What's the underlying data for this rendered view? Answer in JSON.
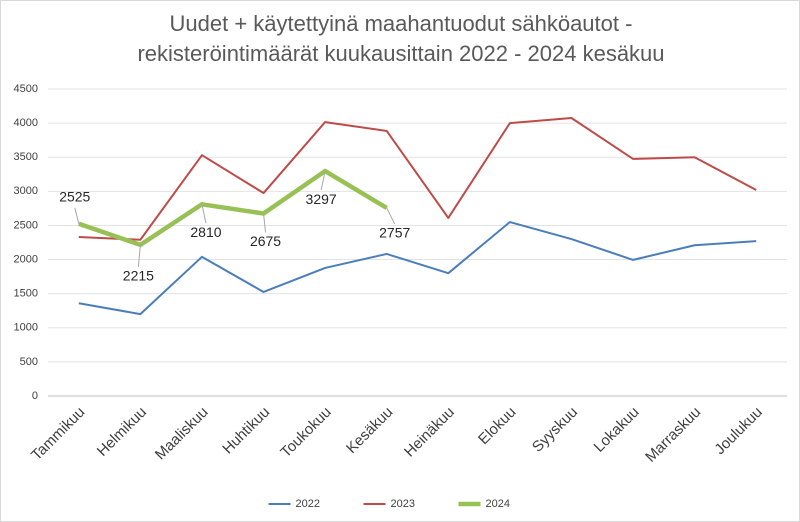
{
  "chart_data": {
    "type": "line",
    "title": [
      "Uudet + käytettyinä maahantuodut sähköautot -",
      "rekisteröintimäärät kuukausittain 2022 - 2024 kesäkuu"
    ],
    "categories": [
      "Tammikuu",
      "Helmikuu",
      "Maaliskuu",
      "Huhtikuu",
      "Toukokuu",
      "Kesäkuu",
      "Heinäkuu",
      "Elokuu",
      "Syyskuu",
      "Lokakuu",
      "Marraskuu",
      "Joulukuu"
    ],
    "series": [
      {
        "name": "2022",
        "color": "#4a7ebb",
        "width": 2,
        "values": [
          1360,
          1200,
          2040,
          1525,
          1877,
          2082,
          1800,
          2550,
          2300,
          1995,
          2210,
          2270
        ]
      },
      {
        "name": "2023",
        "color": "#be4b48",
        "width": 2,
        "values": [
          2330,
          2290,
          3530,
          2975,
          4015,
          3885,
          2610,
          4000,
          4075,
          3475,
          3500,
          3020
        ]
      },
      {
        "name": "2024",
        "color": "#98c155",
        "width": 4.5,
        "data_labels": true,
        "values": [
          2525,
          2215,
          2810,
          2675,
          3297,
          2757,
          null,
          null,
          null,
          null,
          null,
          null
        ]
      }
    ],
    "ylim": [
      0,
      4500
    ],
    "yticks": [
      0,
      500,
      1000,
      1500,
      2000,
      2500,
      3000,
      3500,
      4000,
      4500
    ],
    "grid": true,
    "legend": "bottom"
  }
}
